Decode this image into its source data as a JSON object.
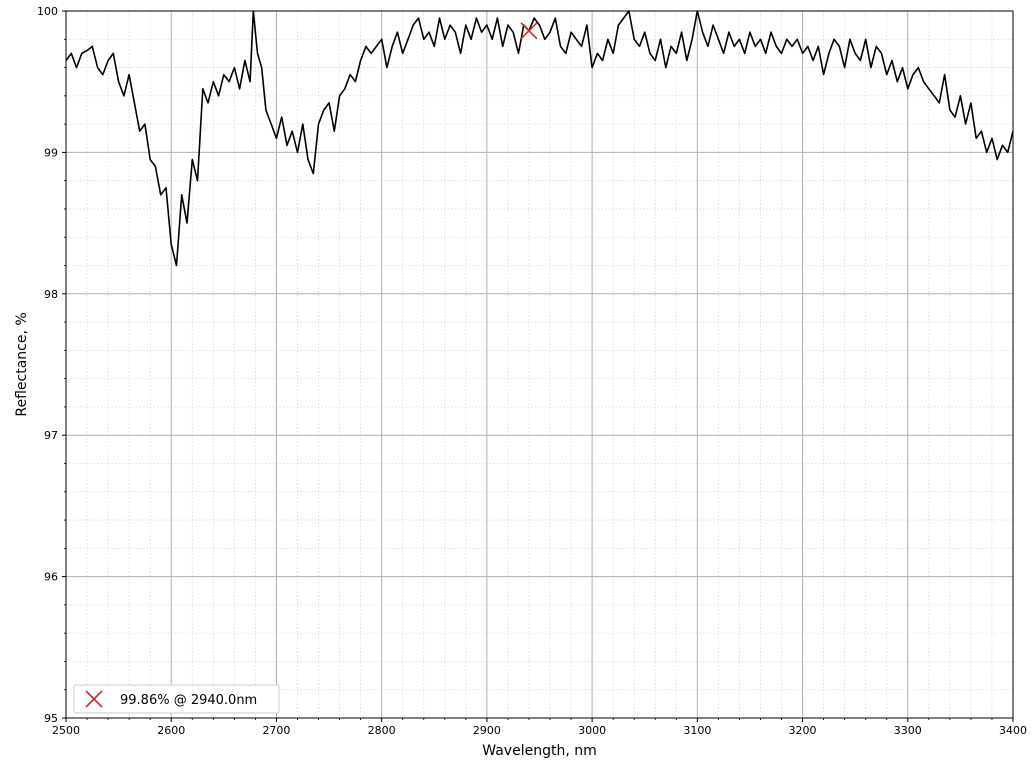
{
  "chart_data": {
    "type": "line",
    "title": "",
    "xlabel": "Wavelength, nm",
    "ylabel": "Reflectance, %",
    "xlim": [
      2500,
      3400
    ],
    "ylim": [
      95,
      100
    ],
    "x_ticks": [
      2500,
      2600,
      2700,
      2800,
      2900,
      3000,
      3100,
      3200,
      3300,
      3400
    ],
    "y_ticks": [
      95,
      96,
      97,
      98,
      99,
      100
    ],
    "x_ticklabels": [
      "2500",
      "2600",
      "2700",
      "2800",
      "2900",
      "3000",
      "3100",
      "3200",
      "3300",
      "3400"
    ],
    "y_ticklabels": [
      "95",
      "96",
      "97",
      "98",
      "99",
      "100"
    ],
    "grid": "major and minor",
    "legend_position": "bottom-left",
    "series": [
      {
        "color": "#000000",
        "x": [
          2500,
          2505,
          2510,
          2515,
          2520,
          2525,
          2530,
          2535,
          2540,
          2545,
          2550,
          2555,
          2560,
          2565,
          2570,
          2575,
          2580,
          2585,
          2590,
          2595,
          2600,
          2605,
          2610,
          2615,
          2620,
          2625,
          2630,
          2635,
          2640,
          2645,
          2650,
          2655,
          2660,
          2665,
          2670,
          2675,
          2678,
          2682,
          2686,
          2690,
          2695,
          2700,
          2705,
          2710,
          2715,
          2720,
          2725,
          2730,
          2735,
          2740,
          2745,
          2750,
          2755,
          2760,
          2765,
          2770,
          2775,
          2780,
          2785,
          2790,
          2795,
          2800,
          2805,
          2810,
          2815,
          2820,
          2825,
          2830,
          2835,
          2840,
          2845,
          2850,
          2855,
          2860,
          2865,
          2870,
          2875,
          2880,
          2885,
          2890,
          2895,
          2900,
          2905,
          2910,
          2915,
          2920,
          2925,
          2930,
          2935,
          2940,
          2945,
          2950,
          2955,
          2960,
          2965,
          2970,
          2975,
          2980,
          2985,
          2990,
          2995,
          3000,
          3005,
          3010,
          3015,
          3020,
          3025,
          3030,
          3035,
          3040,
          3045,
          3050,
          3055,
          3060,
          3065,
          3070,
          3075,
          3080,
          3085,
          3090,
          3095,
          3100,
          3105,
          3110,
          3115,
          3120,
          3125,
          3130,
          3135,
          3140,
          3145,
          3150,
          3155,
          3160,
          3165,
          3170,
          3175,
          3180,
          3185,
          3190,
          3195,
          3200,
          3205,
          3210,
          3215,
          3220,
          3225,
          3230,
          3235,
          3240,
          3245,
          3250,
          3255,
          3260,
          3265,
          3270,
          3275,
          3280,
          3285,
          3290,
          3295,
          3300,
          3305,
          3310,
          3315,
          3320,
          3325,
          3330,
          3335,
          3340,
          3345,
          3350,
          3355,
          3360,
          3365,
          3370,
          3375,
          3380,
          3385,
          3390,
          3395,
          3400
        ],
        "y": [
          99.65,
          99.7,
          99.6,
          99.7,
          99.72,
          99.75,
          99.6,
          99.55,
          99.65,
          99.7,
          99.5,
          99.4,
          99.55,
          99.35,
          99.15,
          99.2,
          98.95,
          98.9,
          98.7,
          98.75,
          98.35,
          98.2,
          98.7,
          98.5,
          98.95,
          98.8,
          99.45,
          99.35,
          99.5,
          99.4,
          99.55,
          99.5,
          99.6,
          99.45,
          99.65,
          99.5,
          100.0,
          99.7,
          99.6,
          99.3,
          99.2,
          99.1,
          99.25,
          99.05,
          99.15,
          99.0,
          99.2,
          98.95,
          98.85,
          99.2,
          99.3,
          99.35,
          99.15,
          99.4,
          99.45,
          99.55,
          99.5,
          99.65,
          99.75,
          99.7,
          99.75,
          99.8,
          99.6,
          99.75,
          99.85,
          99.7,
          99.8,
          99.9,
          99.95,
          99.8,
          99.85,
          99.75,
          99.95,
          99.8,
          99.9,
          99.85,
          99.7,
          99.9,
          99.8,
          99.95,
          99.85,
          99.9,
          99.8,
          99.95,
          99.75,
          99.9,
          99.85,
          99.7,
          99.9,
          99.86,
          99.95,
          99.9,
          99.8,
          99.85,
          99.95,
          99.75,
          99.7,
          99.85,
          99.8,
          99.75,
          99.9,
          99.6,
          99.7,
          99.65,
          99.8,
          99.7,
          99.9,
          99.95,
          100.0,
          99.8,
          99.75,
          99.85,
          99.7,
          99.65,
          99.8,
          99.6,
          99.75,
          99.7,
          99.85,
          99.65,
          99.8,
          100.0,
          99.85,
          99.75,
          99.9,
          99.8,
          99.7,
          99.85,
          99.75,
          99.8,
          99.7,
          99.85,
          99.75,
          99.8,
          99.7,
          99.85,
          99.75,
          99.7,
          99.8,
          99.75,
          99.8,
          99.7,
          99.75,
          99.65,
          99.75,
          99.55,
          99.7,
          99.8,
          99.75,
          99.6,
          99.8,
          99.7,
          99.65,
          99.8,
          99.6,
          99.75,
          99.7,
          99.55,
          99.65,
          99.5,
          99.6,
          99.45,
          99.55,
          99.6,
          99.5,
          99.45,
          99.4,
          99.35,
          99.55,
          99.3,
          99.25,
          99.4,
          99.2,
          99.35,
          99.1,
          99.15,
          99.0,
          99.1,
          98.95,
          99.05,
          99.0,
          99.15
        ]
      }
    ],
    "marker": {
      "x": 2940,
      "y": 99.86,
      "symbol": "x",
      "color": "#d62728",
      "label": "99.86% @ 2940.0nm"
    }
  }
}
